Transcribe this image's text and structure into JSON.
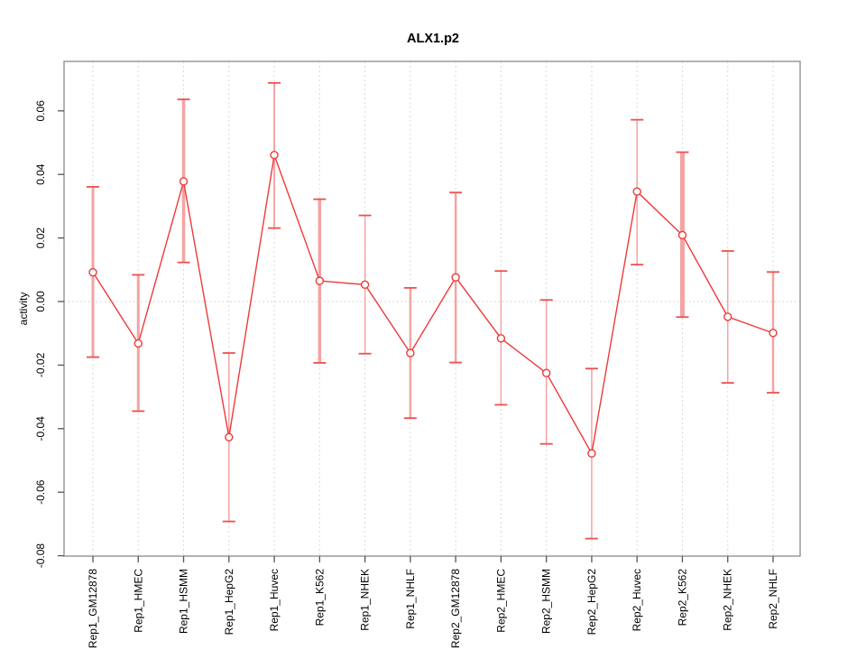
{
  "figure": {
    "title": "ALX1.p2",
    "ylabel": "activity"
  },
  "chart_data": {
    "type": "line",
    "title": "ALX1.p2",
    "xlabel": "",
    "ylabel": "activity",
    "ylim": [
      -0.08,
      0.075
    ],
    "yticks": [
      -0.08,
      -0.06,
      -0.04,
      -0.02,
      0.0,
      0.02,
      0.04,
      0.06
    ],
    "grid": {
      "vertical_dotted_per_category": true,
      "horizontal_zero_line_dotted": true
    },
    "legend_position": "none",
    "point_shape": "open-circle",
    "categories": [
      "Rep1_GM12878",
      "Rep1_HMEC",
      "Rep1_HSMM",
      "Rep1_HepG2",
      "Rep1_Huvec",
      "Rep1_K562",
      "Rep1_NHEK",
      "Rep1_NHLF",
      "Rep2_GM12878",
      "Rep2_HMEC",
      "Rep2_HSMM",
      "Rep2_HepG2",
      "Rep2_Huvec",
      "Rep2_K562",
      "Rep2_NHEK",
      "Rep2_NHLF"
    ],
    "series": [
      {
        "name": "activity",
        "values": [
          0.0092,
          -0.0132,
          0.0378,
          -0.0427,
          0.0461,
          0.0065,
          0.0053,
          -0.0162,
          0.0076,
          -0.0116,
          -0.0225,
          -0.0478,
          0.0346,
          0.0209,
          -0.0048,
          -0.0099
        ],
        "error_high": [
          0.0361,
          0.0084,
          0.0636,
          -0.0162,
          0.0688,
          0.0322,
          0.0271,
          0.0043,
          0.0343,
          0.0096,
          0.0005,
          -0.0211,
          0.0572,
          0.047,
          0.0159,
          0.0093
        ],
        "error_low": [
          -0.0175,
          -0.0345,
          0.0123,
          -0.0692,
          0.0231,
          -0.0193,
          -0.0164,
          -0.0367,
          -0.0192,
          -0.0325,
          -0.0448,
          -0.0746,
          0.0116,
          -0.0049,
          -0.0256,
          -0.0287
        ],
        "bar_stroke_widths": [
          3,
          3,
          3.5,
          1.5,
          2,
          3.5,
          1.5,
          2.5,
          2.5,
          1.5,
          1.5,
          1.5,
          1.5,
          5,
          1.5,
          2.5
        ]
      }
    ],
    "colors": {
      "line": "#ee3a3a",
      "point": "#ee3a3a",
      "error_bar_shaft": "#f5a3a3",
      "error_bar_cap": "#ec5050",
      "gridline": "#d9d9d9",
      "zero_line": "#cccccc",
      "box": "#8a8a8a",
      "tick": "#555555",
      "text": "#000000",
      "background": "#ffffff"
    }
  }
}
